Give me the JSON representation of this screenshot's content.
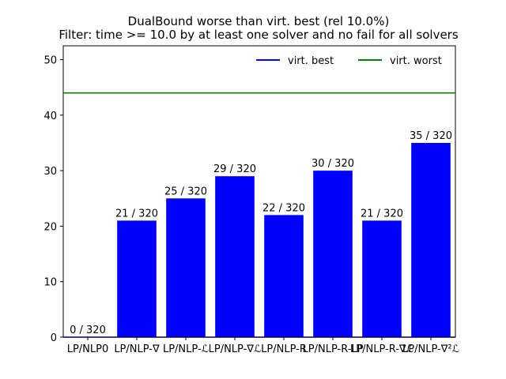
{
  "chart_data": {
    "type": "bar",
    "title_lines": [
      "DualBound worse than virt. best (rel 10.0%)",
      "Filter: time >= 10.0 by at least one solver and no fail for all solvers"
    ],
    "categories": [
      "LP/NLP0",
      "LP/NLP-∇",
      "LP/NLP-ℒ",
      "LP/NLP-∇ℒ",
      "LP/NLP-R",
      "LP/NLP-R-LP",
      "LP/NLP-R-∇ℒ",
      "LP/NLP-∇²ℒ"
    ],
    "values": [
      0,
      21,
      25,
      29,
      22,
      30,
      21,
      35
    ],
    "bar_labels": [
      "0 / 320",
      "21 / 320",
      "25 / 320",
      "29 / 320",
      "22 / 320",
      "30 / 320",
      "21 / 320",
      "35 / 320"
    ],
    "ylim": [
      0,
      52.5
    ],
    "yticks": [
      0,
      10,
      20,
      30,
      40,
      50
    ],
    "reference_lines": [
      {
        "name": "virt. best",
        "value": 0,
        "color": "#0000ff"
      },
      {
        "name": "virt. worst",
        "value": 44,
        "color": "#008000"
      }
    ],
    "bar_color": "#0000ff",
    "legend_placement": "top-right",
    "grid": false
  }
}
